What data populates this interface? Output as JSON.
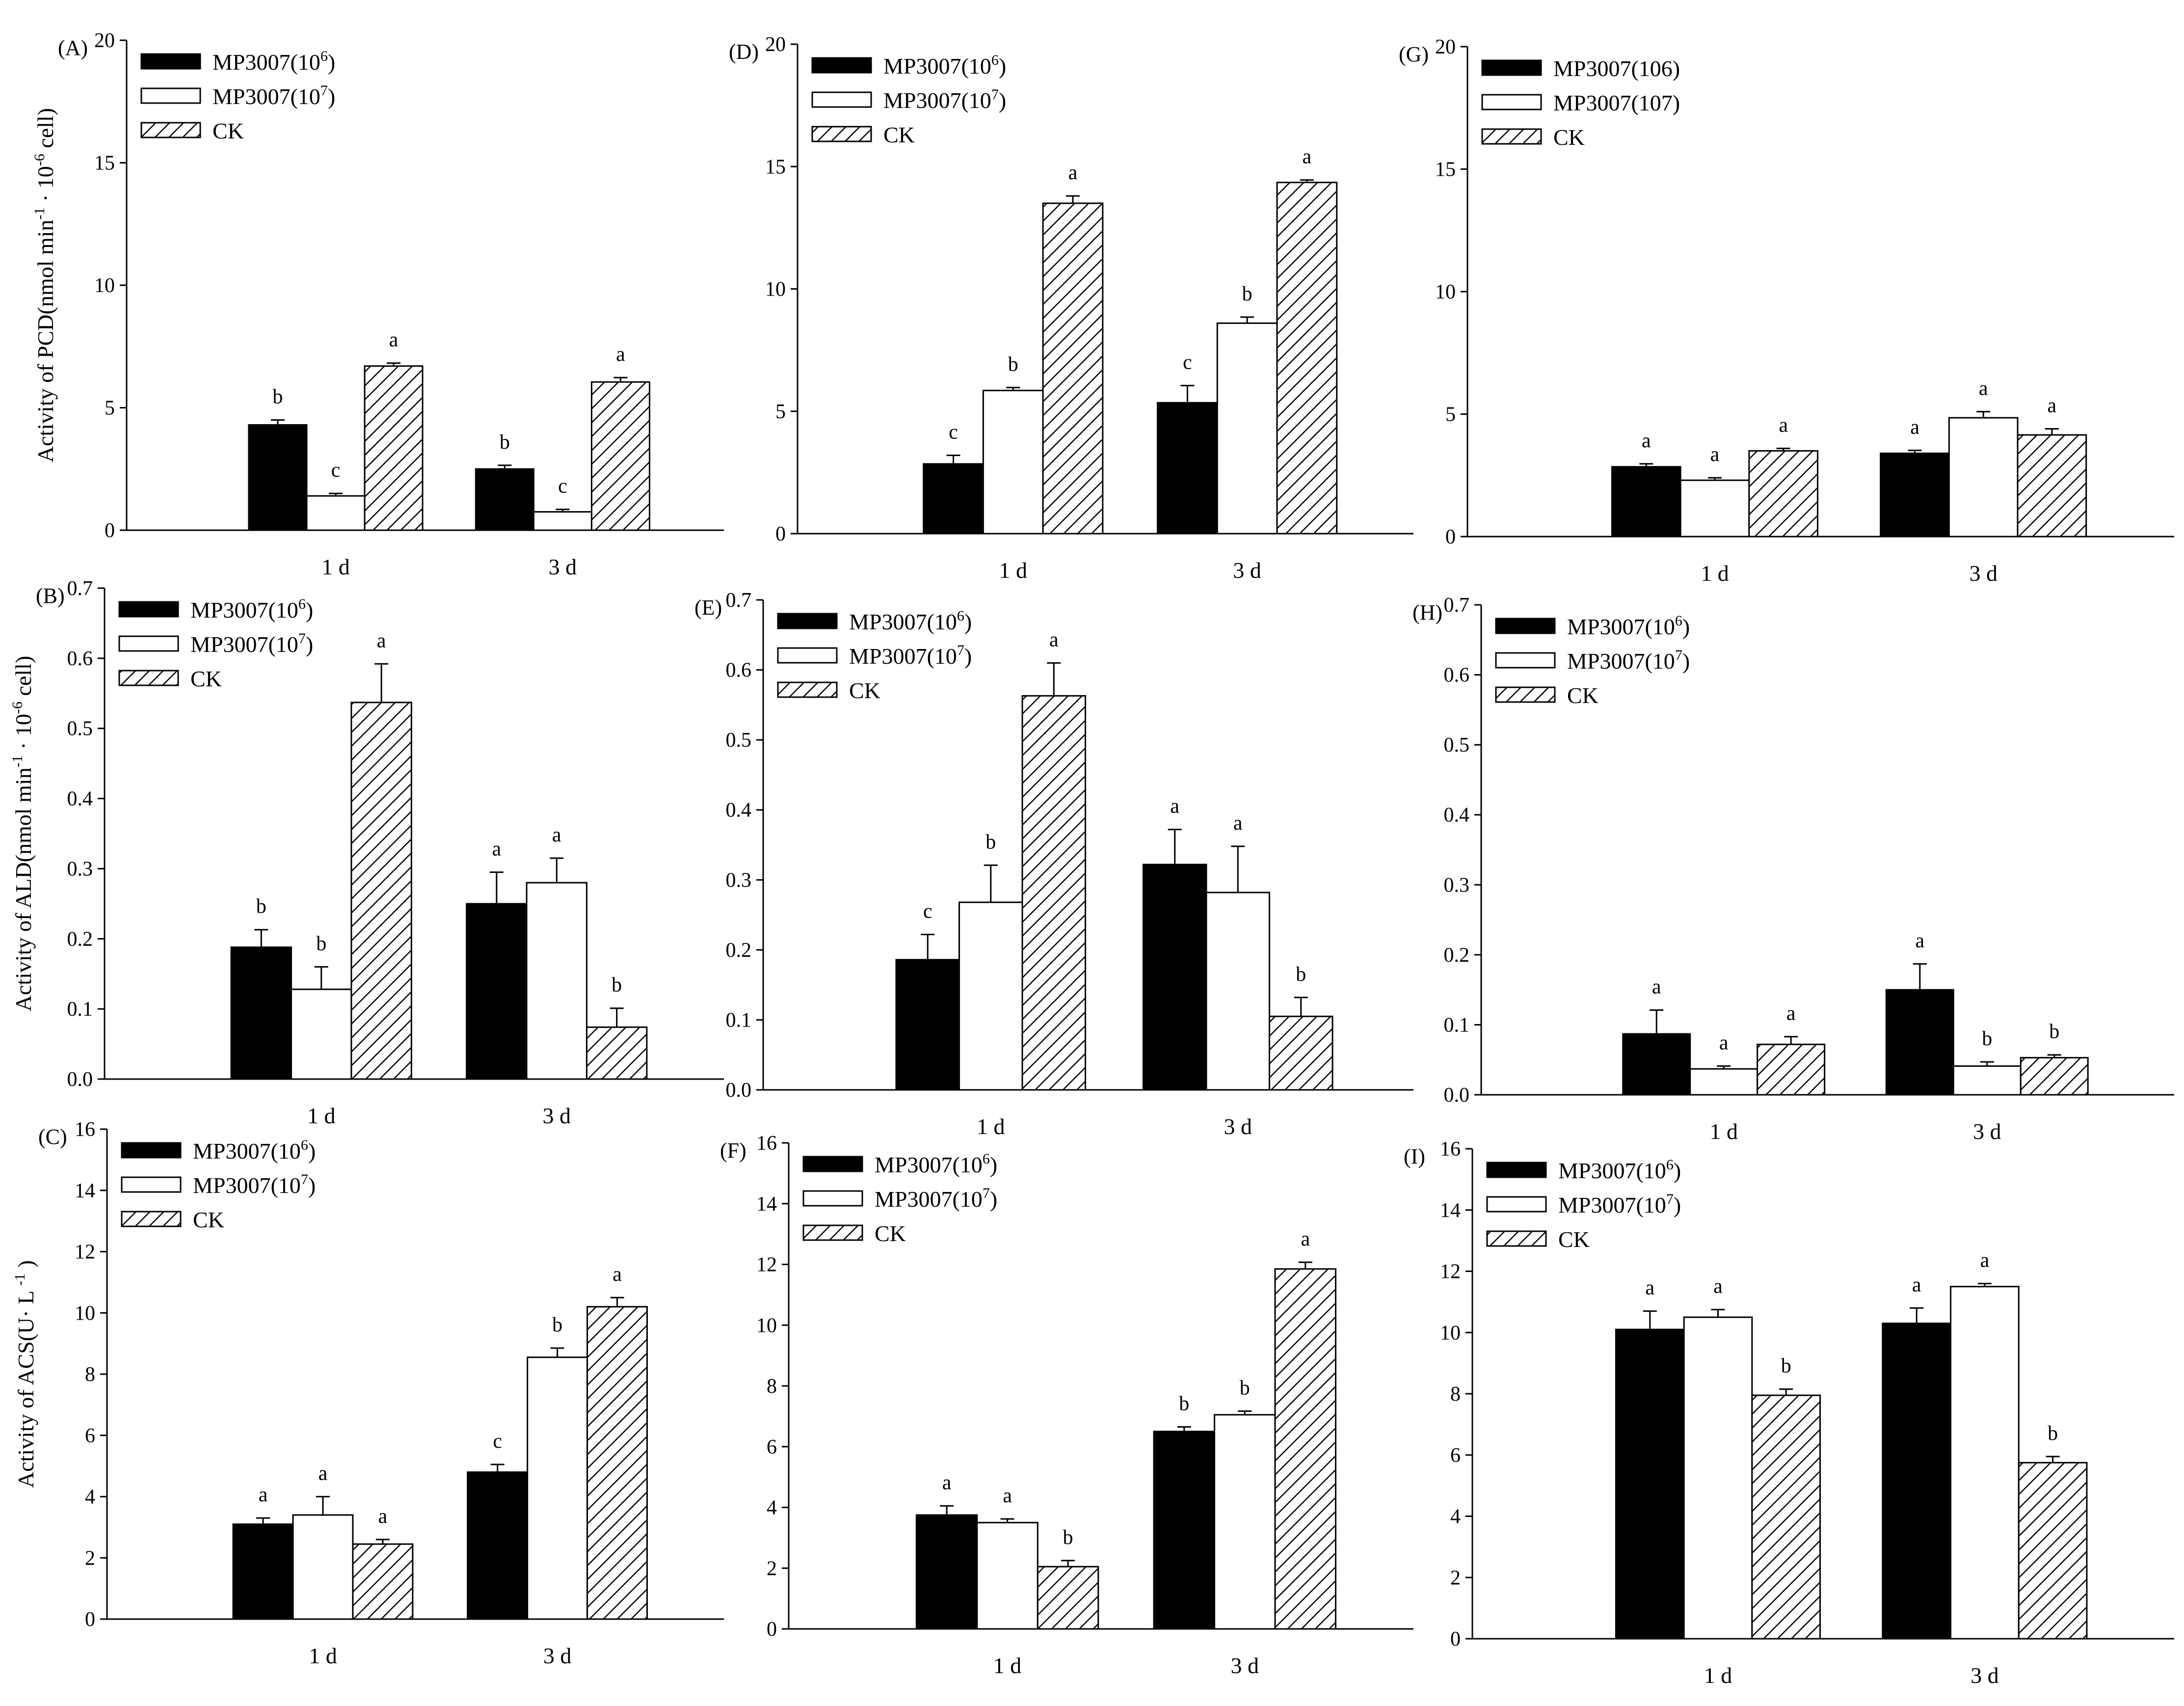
{
  "colors": {
    "black": "#000000",
    "white": "#ffffff",
    "hatch": "#000000"
  },
  "legend_sets": {
    "sup": [
      {
        "name": "MP3007(10",
        "sup": "6",
        "tail": ")",
        "style": "solid"
      },
      {
        "name": "MP3007(10",
        "sup": "7",
        "tail": ")",
        "style": "open"
      },
      {
        "name": "CK",
        "sup": "",
        "tail": "",
        "style": "hatch"
      }
    ],
    "plain": [
      {
        "name": "MP3007(106)",
        "sup": "",
        "tail": "",
        "style": "solid"
      },
      {
        "name": "MP3007(107)",
        "sup": "",
        "tail": "",
        "style": "open"
      },
      {
        "name": "CK",
        "sup": "",
        "tail": "",
        "style": "hatch"
      }
    ]
  },
  "ylabel_parts": {
    "pcd": {
      "a": "Activity of PCD(nmol",
      "b": "min",
      "b_sup": "-1",
      "c": "·  10",
      "c_sup": "-6",
      "d": " cell)"
    },
    "ald": {
      "a": "Activity of ALD(nmol",
      "b": "min",
      "b_sup": "-1",
      "c": "·  10",
      "c_sup": "-6",
      "d": "cell)"
    },
    "acs": {
      "a": "Activity of ACS(U·  L",
      "b": "",
      "b_sup": "-1",
      "c": ")",
      "c_sup": "",
      "d": ""
    }
  },
  "chart_data": [
    {
      "id": "A",
      "panel_label": "(A)",
      "type": "bar",
      "categories": [
        "1 d",
        "3 d"
      ],
      "ylim": [
        0,
        20
      ],
      "yticks": [
        "0",
        "5",
        "10",
        "15",
        "20"
      ],
      "ylabel": "pcd",
      "legend": "sup",
      "series": [
        {
          "name": "MP3007(10^6)",
          "values": [
            4.3,
            2.5
          ],
          "errors": [
            0.2,
            0.15
          ],
          "letters": [
            "b",
            "b"
          ]
        },
        {
          "name": "MP3007(10^7)",
          "values": [
            1.4,
            0.75
          ],
          "errors": [
            0.1,
            0.1
          ],
          "letters": [
            "c",
            "c"
          ]
        },
        {
          "name": "CK",
          "values": [
            6.7,
            6.05
          ],
          "errors": [
            0.12,
            0.18
          ],
          "letters": [
            "a",
            "a"
          ]
        }
      ]
    },
    {
      "id": "D",
      "panel_label": "(D)",
      "type": "bar",
      "categories": [
        "1 d",
        "3 d"
      ],
      "ylim": [
        0,
        20
      ],
      "yticks": [
        "0",
        "5",
        "10",
        "15",
        "20"
      ],
      "ylabel": "",
      "legend": "sup",
      "series": [
        {
          "name": "MP3007(10^6)",
          "values": [
            2.85,
            5.35
          ],
          "errors": [
            0.35,
            0.7
          ],
          "letters": [
            "c",
            "c"
          ]
        },
        {
          "name": "MP3007(10^7)",
          "values": [
            5.85,
            8.6
          ],
          "errors": [
            0.12,
            0.25
          ],
          "letters": [
            "b",
            "b"
          ]
        },
        {
          "name": "CK",
          "values": [
            13.5,
            14.35
          ],
          "errors": [
            0.3,
            0.1
          ],
          "letters": [
            "a",
            "a"
          ]
        }
      ]
    },
    {
      "id": "G",
      "panel_label": "(G)",
      "type": "bar",
      "categories": [
        "1 d",
        "3 d"
      ],
      "ylim": [
        0,
        20
      ],
      "yticks": [
        "0",
        "5",
        "10",
        "15",
        "20"
      ],
      "ylabel": "",
      "legend": "plain",
      "series": [
        {
          "name": "MP3007(106)",
          "values": [
            2.85,
            3.4
          ],
          "errors": [
            0.12,
            0.12
          ],
          "letters": [
            "a",
            "a"
          ]
        },
        {
          "name": "MP3007(107)",
          "values": [
            2.3,
            4.85
          ],
          "errors": [
            0.1,
            0.25
          ],
          "letters": [
            "a",
            "a"
          ]
        },
        {
          "name": "CK",
          "values": [
            3.5,
            4.15
          ],
          "errors": [
            0.1,
            0.25
          ],
          "letters": [
            "a",
            "a"
          ]
        }
      ]
    },
    {
      "id": "B",
      "panel_label": "(B)",
      "type": "bar",
      "categories": [
        "1 d",
        "3 d"
      ],
      "ylim": [
        0,
        0.7
      ],
      "yticks": [
        "0.0",
        "0.1",
        "0.2",
        "0.3",
        "0.4",
        "0.5",
        "0.6",
        "0.7"
      ],
      "ylabel": "ald",
      "legend": "sup",
      "series": [
        {
          "name": "MP3007(10^6)",
          "values": [
            0.188,
            0.25
          ],
          "errors": [
            0.025,
            0.045
          ],
          "letters": [
            "b",
            "a"
          ]
        },
        {
          "name": "MP3007(10^7)",
          "values": [
            0.128,
            0.28
          ],
          "errors": [
            0.032,
            0.035
          ],
          "letters": [
            "b",
            "a"
          ]
        },
        {
          "name": "CK",
          "values": [
            0.537,
            0.074
          ],
          "errors": [
            0.055,
            0.027
          ],
          "letters": [
            "a",
            "b"
          ]
        }
      ]
    },
    {
      "id": "E",
      "panel_label": "(E)",
      "type": "bar",
      "categories": [
        "1 d",
        "3 d"
      ],
      "ylim": [
        0,
        0.7
      ],
      "yticks": [
        "0.0",
        "0.1",
        "0.2",
        "0.3",
        "0.4",
        "0.5",
        "0.6",
        "0.7"
      ],
      "ylabel": "",
      "legend": "sup",
      "series": [
        {
          "name": "MP3007(10^6)",
          "values": [
            0.186,
            0.322
          ],
          "errors": [
            0.036,
            0.05
          ],
          "letters": [
            "c",
            "a"
          ]
        },
        {
          "name": "MP3007(10^7)",
          "values": [
            0.268,
            0.282
          ],
          "errors": [
            0.053,
            0.066
          ],
          "letters": [
            "b",
            "a"
          ]
        },
        {
          "name": "CK",
          "values": [
            0.563,
            0.105
          ],
          "errors": [
            0.047,
            0.027
          ],
          "letters": [
            "a",
            "b"
          ]
        }
      ]
    },
    {
      "id": "H",
      "panel_label": "(H)",
      "type": "bar",
      "categories": [
        "1 d",
        "3 d"
      ],
      "ylim": [
        0,
        0.7
      ],
      "yticks": [
        "0.0",
        "0.1",
        "0.2",
        "0.3",
        "0.4",
        "0.5",
        "0.6",
        "0.7"
      ],
      "ylabel": "",
      "legend": "sup",
      "series": [
        {
          "name": "MP3007(10^6)",
          "values": [
            0.087,
            0.15
          ],
          "errors": [
            0.034,
            0.037
          ],
          "letters": [
            "a",
            "a"
          ]
        },
        {
          "name": "MP3007(10^7)",
          "values": [
            0.037,
            0.041
          ],
          "errors": [
            0.004,
            0.006
          ],
          "letters": [
            "a",
            "b"
          ]
        },
        {
          "name": "CK",
          "values": [
            0.072,
            0.053
          ],
          "errors": [
            0.011,
            0.004
          ],
          "letters": [
            "a",
            "b"
          ]
        }
      ]
    },
    {
      "id": "C",
      "panel_label": "(C)",
      "type": "bar",
      "categories": [
        "1 d",
        "3 d"
      ],
      "ylim": [
        0,
        16
      ],
      "yticks": [
        "0",
        "2",
        "4",
        "6",
        "8",
        "10",
        "12",
        "14",
        "16"
      ],
      "ylabel": "acs",
      "legend": "sup",
      "series": [
        {
          "name": "MP3007(10^6)",
          "values": [
            3.1,
            4.8
          ],
          "errors": [
            0.2,
            0.25
          ],
          "letters": [
            "a",
            "c"
          ]
        },
        {
          "name": "MP3007(10^7)",
          "values": [
            3.4,
            8.55
          ],
          "errors": [
            0.6,
            0.3
          ],
          "letters": [
            "a",
            "b"
          ]
        },
        {
          "name": "CK",
          "values": [
            2.45,
            10.2
          ],
          "errors": [
            0.15,
            0.3
          ],
          "letters": [
            "a",
            "a"
          ]
        }
      ]
    },
    {
      "id": "F",
      "panel_label": "(F)",
      "type": "bar",
      "categories": [
        "1 d",
        "3 d"
      ],
      "ylim": [
        0,
        16
      ],
      "yticks": [
        "0",
        "2",
        "4",
        "6",
        "8",
        "10",
        "12",
        "14",
        "16"
      ],
      "ylabel": "",
      "legend": "sup",
      "series": [
        {
          "name": "MP3007(10^6)",
          "values": [
            3.75,
            6.5
          ],
          "errors": [
            0.3,
            0.15
          ],
          "letters": [
            "a",
            "b"
          ]
        },
        {
          "name": "MP3007(10^7)",
          "values": [
            3.5,
            7.05
          ],
          "errors": [
            0.12,
            0.12
          ],
          "letters": [
            "a",
            "b"
          ]
        },
        {
          "name": "CK",
          "values": [
            2.05,
            11.85
          ],
          "errors": [
            0.2,
            0.22
          ],
          "letters": [
            "b",
            "a"
          ]
        }
      ]
    },
    {
      "id": "I",
      "panel_label": "(I)",
      "type": "bar",
      "categories": [
        "1 d",
        "3 d"
      ],
      "ylim": [
        0,
        16
      ],
      "yticks": [
        "0",
        "2",
        "4",
        "6",
        "8",
        "10",
        "12",
        "14",
        "16"
      ],
      "ylabel": "",
      "legend": "sup",
      "series": [
        {
          "name": "MP3007(10^6)",
          "values": [
            10.1,
            10.3
          ],
          "errors": [
            0.6,
            0.5
          ],
          "letters": [
            "a",
            "a"
          ]
        },
        {
          "name": "MP3007(10^7)",
          "values": [
            10.5,
            11.5
          ],
          "errors": [
            0.25,
            0.1
          ],
          "letters": [
            "a",
            "a"
          ]
        },
        {
          "name": "CK",
          "values": [
            7.95,
            5.75
          ],
          "errors": [
            0.2,
            0.2
          ],
          "letters": [
            "b",
            "b"
          ]
        }
      ]
    }
  ]
}
